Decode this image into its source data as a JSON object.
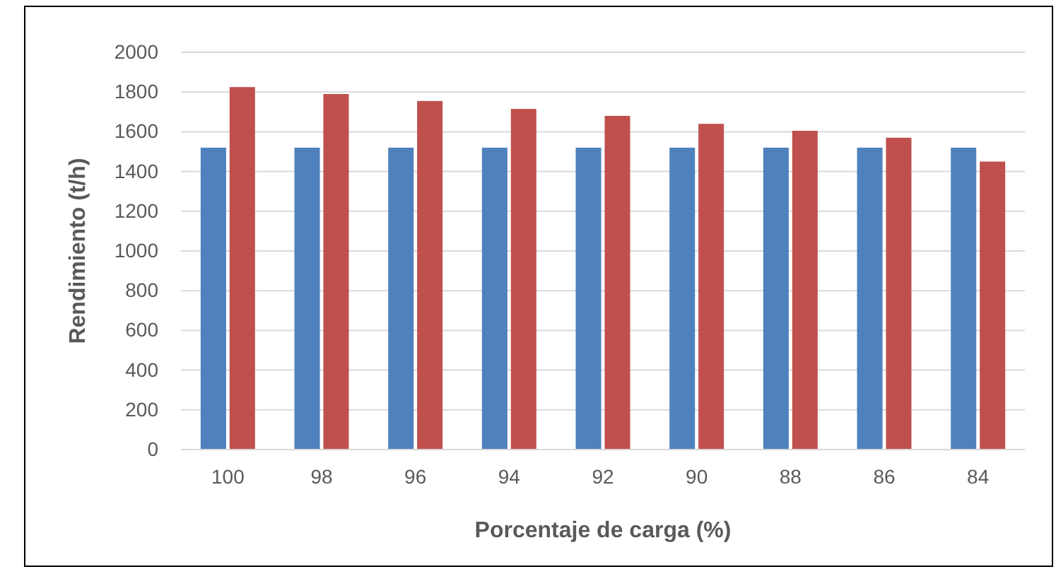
{
  "chart_data": {
    "type": "bar",
    "xlabel": "Porcentaje de carga (%)",
    "ylabel": "Rendimiento (t/h)",
    "categories": [
      "100",
      "98",
      "96",
      "94",
      "92",
      "90",
      "88",
      "86",
      "84"
    ],
    "series": [
      {
        "color": "#4f81bd",
        "values": [
          1520,
          1520,
          1520,
          1520,
          1520,
          1520,
          1520,
          1520,
          1520
        ]
      },
      {
        "color": "#c0504d",
        "values": [
          1825,
          1790,
          1755,
          1715,
          1680,
          1640,
          1605,
          1570,
          1450
        ]
      }
    ],
    "ylim": [
      0,
      2000
    ],
    "yticks": [
      0,
      200,
      400,
      600,
      800,
      1000,
      1200,
      1400,
      1600,
      1800,
      2000
    ],
    "grid": "y"
  }
}
